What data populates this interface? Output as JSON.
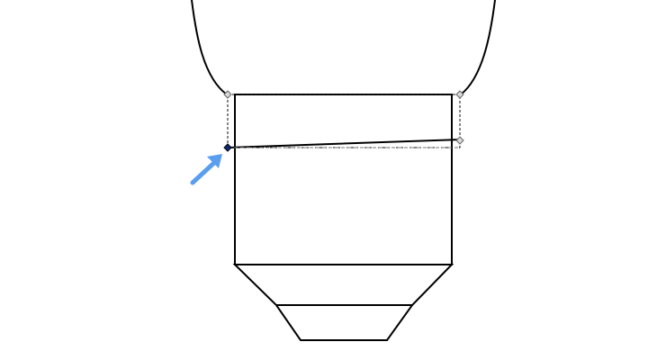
{
  "canvas": {
    "background": "#ffffff",
    "stroke": "#000000",
    "handle_fill": "#d9d9d9",
    "handle_stroke": "#666666",
    "selected_handle_fill": "#0b2a7a",
    "selection_dash": "#111111",
    "guide_dash": "#777777",
    "arrow_color": "#5a9ef0"
  },
  "objects": {
    "bulb_top": {
      "icon": "bulb-outline-icon"
    },
    "collar": {
      "icon": "rectangle-icon"
    },
    "base": {
      "icon": "trapezoid-icon"
    },
    "selection": {
      "icon": "selection-box-icon"
    },
    "active_node": {
      "icon": "node-handle-icon"
    },
    "pointer": {
      "icon": "arrow-pointer-icon"
    }
  }
}
